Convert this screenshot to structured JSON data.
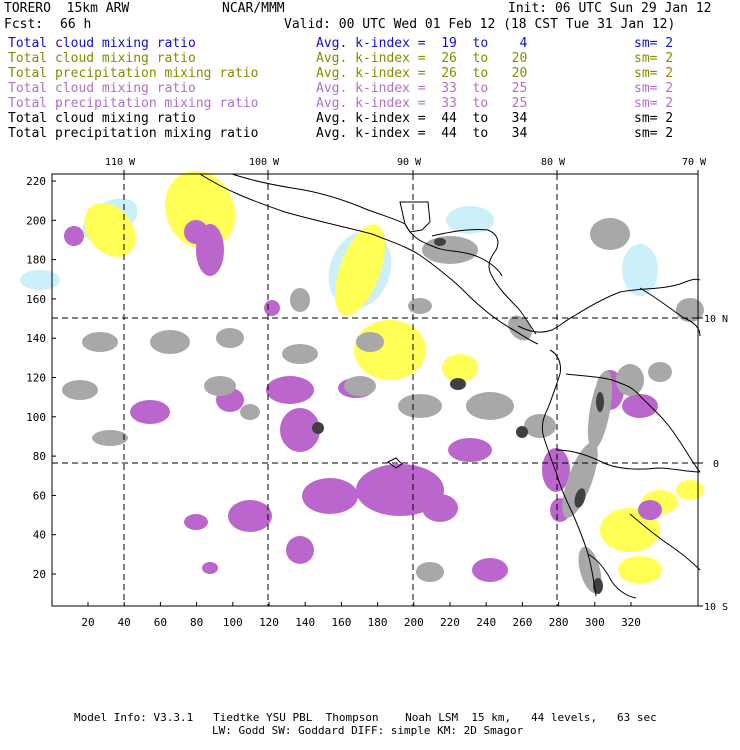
{
  "header": {
    "model": "TORERO  15km ARW",
    "org": "NCAR/MMM",
    "init": "Init: 06 UTC Sun 29 Jan 12",
    "fcst_label": "Fcst:",
    "fcst_value": "66 h",
    "valid": "Valid: 00 UTC Wed 01 Feb 12 (18 CST Tue 31 Jan 12)"
  },
  "legend": [
    {
      "field": "Total cloud mixing ratio",
      "kindex": "Avg. k-index =  19  to    4",
      "sm": "sm= 2",
      "color": "#1010c8"
    },
    {
      "field": "Total cloud mixing ratio",
      "kindex": "Avg. k-index =  26  to   20",
      "sm": "sm= 2",
      "color": "#8a8a00"
    },
    {
      "field": "Total precipitation mixing ratio",
      "kindex": "Avg. k-index =  26  to   20",
      "sm": "sm= 2",
      "color": "#8a8a00"
    },
    {
      "field": "Total cloud mixing ratio",
      "kindex": "Avg. k-index =  33  to   25",
      "sm": "sm= 2",
      "color": "#b070c8"
    },
    {
      "field": "Total precipitation mixing ratio",
      "kindex": "Avg. k-index =  33  to   25",
      "sm": "sm= 2",
      "color": "#b070c8"
    },
    {
      "field": "Total cloud mixing ratio",
      "kindex": "Avg. k-index =  44  to   34",
      "sm": "sm= 2",
      "color": "#000000"
    },
    {
      "field": "Total precipitation mixing ratio",
      "kindex": "Avg. k-index =  44  to   34",
      "sm": "sm= 2",
      "color": "#000000"
    }
  ],
  "map": {
    "lon_labels": [
      "110 W",
      "100 W",
      "90 W",
      "80 W",
      "70 W"
    ],
    "lat_labels": [
      "10 N",
      "0",
      "10 S"
    ],
    "y_ticks": [
      "220",
      "200",
      "180",
      "160",
      "140",
      "120",
      "100",
      "80",
      "60",
      "40",
      "20"
    ],
    "x_ticks": [
      "20",
      "40",
      "60",
      "80",
      "100",
      "120",
      "140",
      "160",
      "180",
      "200",
      "220",
      "240",
      "260",
      "280",
      "300",
      "320"
    ],
    "colors": {
      "cloud_light": "#cdeffa",
      "yellow": "#ffff55",
      "purple": "#bb66cc",
      "gray": "#a8a8a8",
      "dark": "#404040",
      "grid": "#000000"
    }
  },
  "footer": {
    "line1": "Model Info: V3.3.1   Tiedtke YSU PBL  Thompson    Noah LSM  15 km,   44 levels,   63 sec",
    "line2": "LW: Godd SW: Goddard DIFF: simple KM: 2D Smagor"
  }
}
